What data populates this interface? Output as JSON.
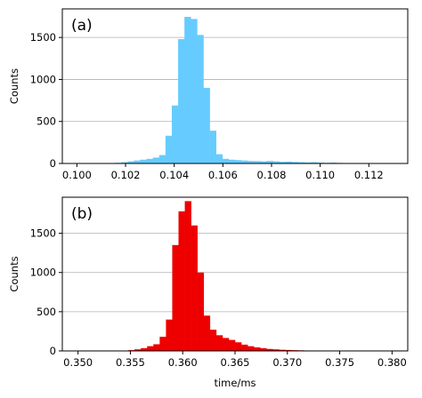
{
  "chart_data": [
    {
      "type": "bar",
      "panel_label": "(a)",
      "ylabel": "Counts",
      "xlabel": "",
      "xlim": [
        0.0994,
        0.1136
      ],
      "ylim": [
        0,
        1840
      ],
      "xticks": [
        0.1,
        0.102,
        0.104,
        0.106,
        0.108,
        0.11,
        0.112
      ],
      "xtick_labels": [
        "0.100",
        "0.102",
        "0.104",
        "0.106",
        "0.108",
        "0.110",
        "0.112"
      ],
      "yticks": [
        0,
        500,
        1000,
        1500
      ],
      "ytick_labels": [
        "0",
        "500",
        "1000",
        "1500"
      ],
      "grid": "horizontal",
      "color": "#66ccff",
      "bin_start": 0.1,
      "bin_width": 0.00026,
      "values": [
        0,
        0,
        0,
        0,
        0,
        3,
        8,
        15,
        25,
        35,
        45,
        55,
        70,
        100,
        330,
        690,
        1480,
        1745,
        1720,
        1530,
        900,
        390,
        110,
        55,
        45,
        40,
        35,
        30,
        28,
        25,
        30,
        25,
        20,
        22,
        18,
        15,
        12,
        15,
        10,
        8,
        10,
        7,
        5,
        5,
        4,
        4,
        3,
        3,
        2,
        1
      ]
    },
    {
      "type": "bar",
      "panel_label": "(b)",
      "ylabel": "Counts",
      "xlabel": "time/ms",
      "xlim": [
        0.3485,
        0.3815
      ],
      "ylim": [
        0,
        1960
      ],
      "xticks": [
        0.35,
        0.355,
        0.36,
        0.365,
        0.37,
        0.375,
        0.38
      ],
      "xtick_labels": [
        "0.350",
        "0.355",
        "0.360",
        "0.365",
        "0.370",
        "0.375",
        "0.380"
      ],
      "yticks": [
        0,
        500,
        1000,
        1500
      ],
      "ytick_labels": [
        "0",
        "500",
        "1000",
        "1500"
      ],
      "grid": "horizontal",
      "color": "#ee0000",
      "bin_start": 0.35,
      "bin_width": 0.0006,
      "values": [
        0,
        0,
        0,
        0,
        1,
        2,
        3,
        5,
        10,
        20,
        35,
        60,
        85,
        180,
        400,
        1350,
        1780,
        1910,
        1600,
        1000,
        450,
        270,
        200,
        165,
        140,
        110,
        80,
        60,
        45,
        35,
        25,
        20,
        15,
        12,
        10,
        8,
        6,
        5,
        5,
        4,
        3,
        3,
        2,
        2,
        1,
        1,
        1,
        1,
        1,
        0
      ]
    }
  ]
}
